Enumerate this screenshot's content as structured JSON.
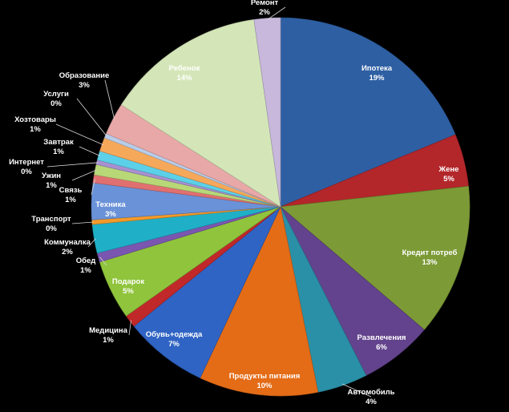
{
  "chart_data": {
    "type": "pie",
    "title": "",
    "slices": [
      {
        "label": "Ипотека",
        "pct_label": "19%",
        "value": 19.2,
        "color": "#2e5fa3"
      },
      {
        "label": "Жене",
        "pct_label": "5%",
        "value": 4.6,
        "color": "#b3262a"
      },
      {
        "label": "Кредит потреб",
        "pct_label": "13%",
        "value": 13.3,
        "color": "#7c9a36"
      },
      {
        "label": "Развлечения",
        "pct_label": "6%",
        "value": 6.4,
        "color": "#63438d"
      },
      {
        "label": "Автомобиль",
        "pct_label": "4%",
        "value": 4.4,
        "color": "#2a90a8"
      },
      {
        "label": "Продукты питания",
        "pct_label": "10%",
        "value": 10.4,
        "color": "#e46c17"
      },
      {
        "label": "Обувь+одежда",
        "pct_label": "7%",
        "value": 7.3,
        "color": "#2f64c4"
      },
      {
        "label": "Медицина",
        "pct_label": "1%",
        "value": 1.1,
        "color": "#c0282a"
      },
      {
        "label": "Подарок",
        "pct_label": "5%",
        "value": 5.2,
        "color": "#8fc43c"
      },
      {
        "label": "Обед",
        "pct_label": "1%",
        "value": 0.8,
        "color": "#7a56b0"
      },
      {
        "label": "Коммуналка",
        "pct_label": "2%",
        "value": 2.5,
        "color": "#1fb0c8"
      },
      {
        "label": "Транспорт",
        "pct_label": "0%",
        "value": 0.4,
        "color": "#f39a2a"
      },
      {
        "label": "Техника",
        "pct_label": "3%",
        "value": 3.2,
        "color": "#6a92d8"
      },
      {
        "label": "Связь",
        "pct_label": "1%",
        "value": 0.7,
        "color": "#e07070"
      },
      {
        "label": "Ужин",
        "pct_label": "1%",
        "value": 0.9,
        "color": "#b8d878"
      },
      {
        "label": "Интернет",
        "pct_label": "0%",
        "value": 0.4,
        "color": "#a890d0"
      },
      {
        "label": "Завтрак",
        "pct_label": "1%",
        "value": 0.8,
        "color": "#5cd0e8"
      },
      {
        "label": "Хозтовары",
        "pct_label": "1%",
        "value": 1.2,
        "color": "#f6a85a"
      },
      {
        "label": "Услуги",
        "pct_label": "0%",
        "value": 0.4,
        "color": "#b8cce8"
      },
      {
        "label": "Образование",
        "pct_label": "3%",
        "value": 2.8,
        "color": "#e8a8a8"
      },
      {
        "label": "Ребенок",
        "pct_label": "14%",
        "value": 14.0,
        "color": "#d4e6b8"
      },
      {
        "label": "Ремонт",
        "pct_label": "2%",
        "value": 2.3,
        "color": "#c8b8dc"
      }
    ]
  }
}
